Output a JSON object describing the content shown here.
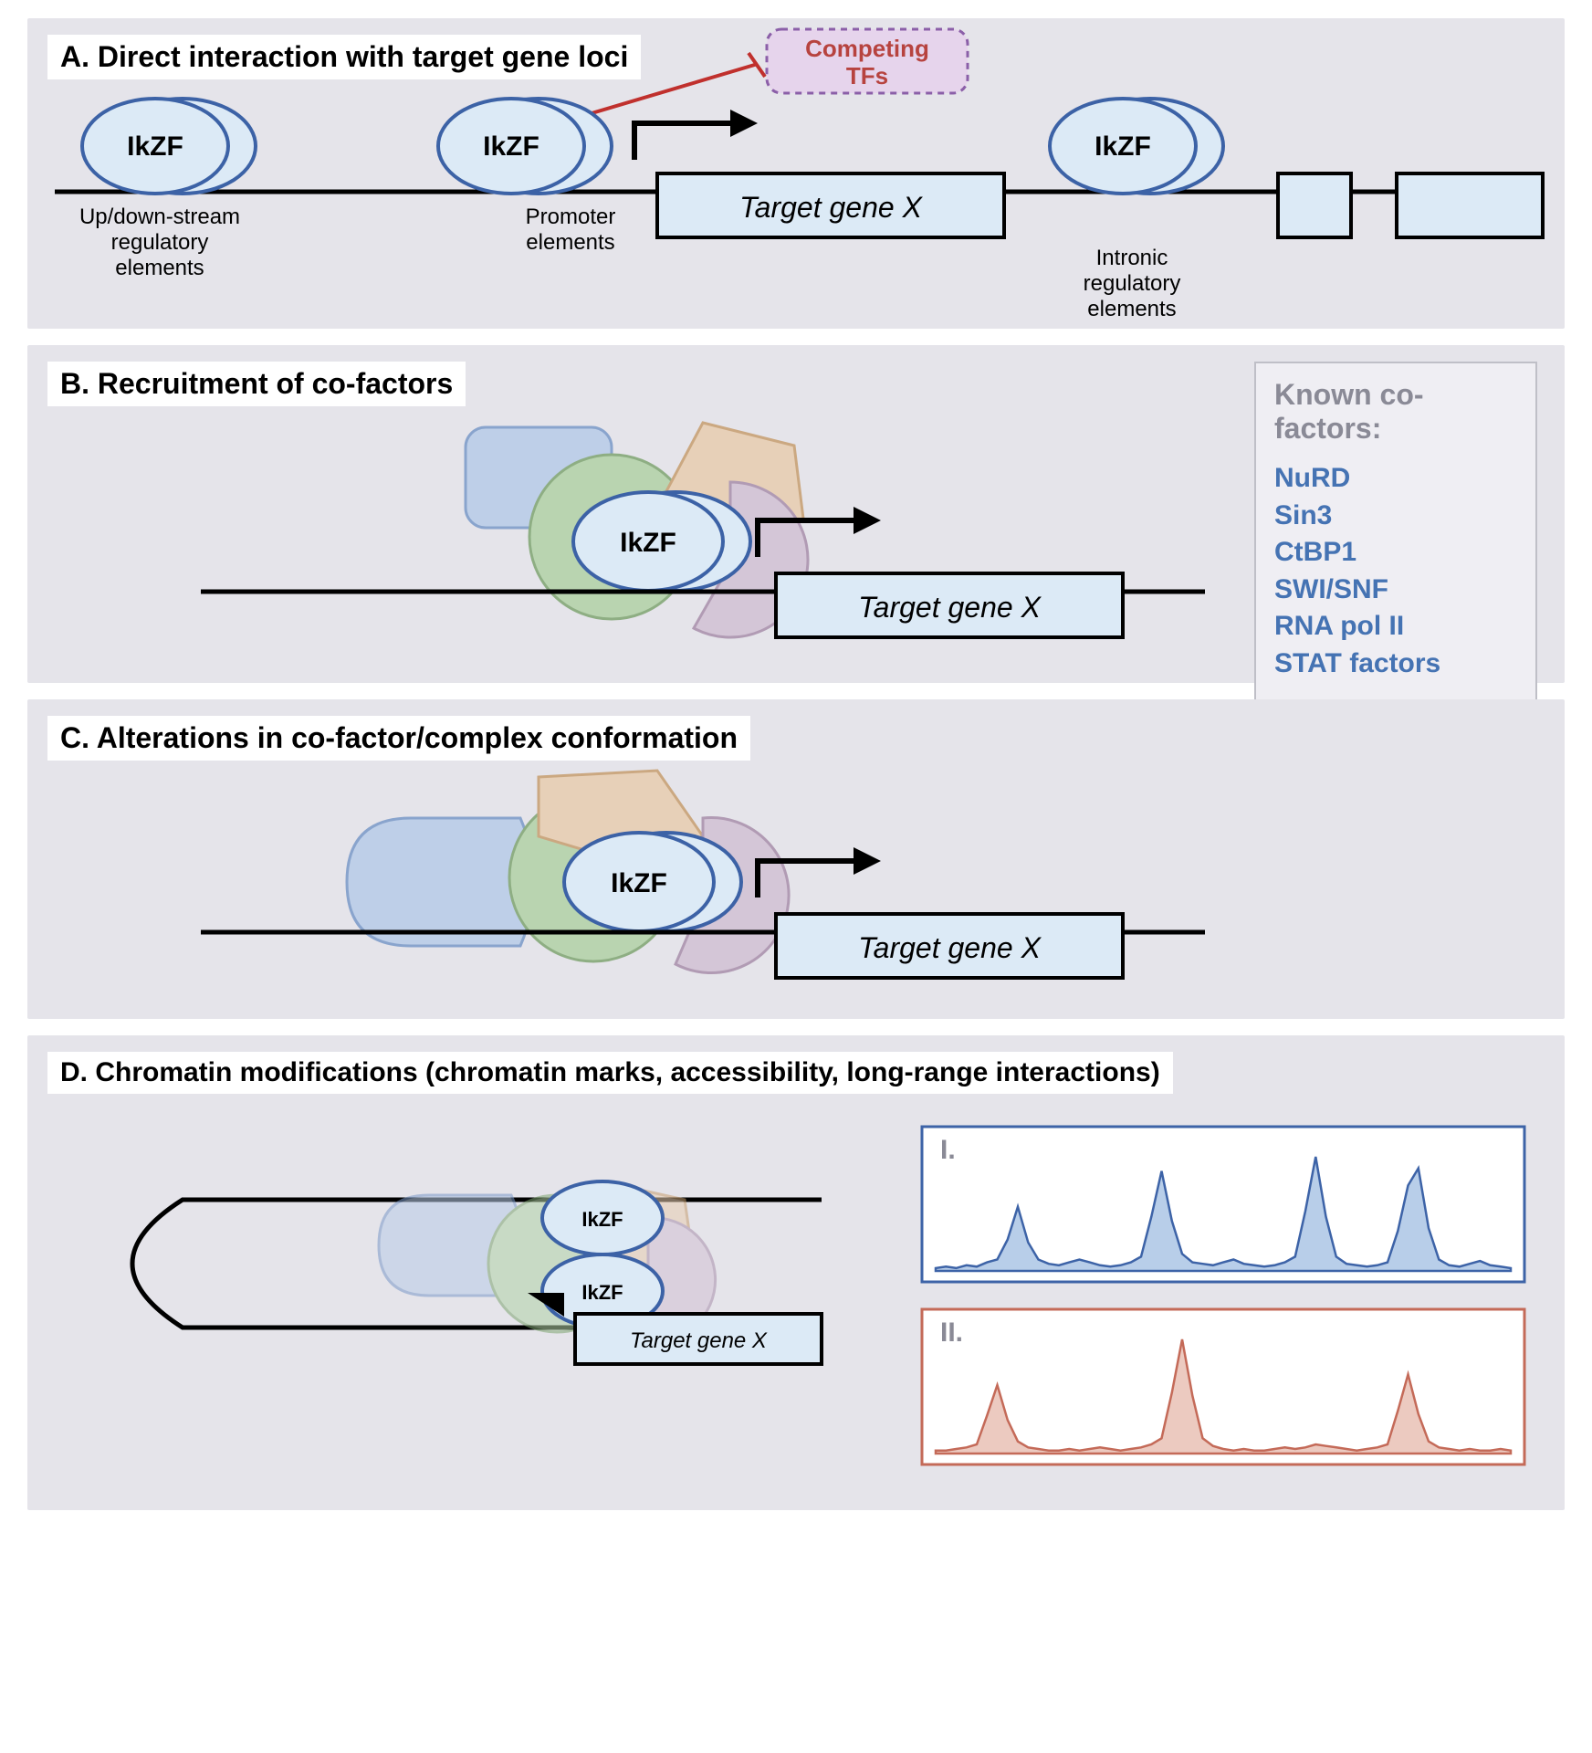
{
  "colors": {
    "panel_bg": "#e5e4ea",
    "gene_fill": "#dceaf6",
    "ikzf_fill": "#dceaf6",
    "ikzf_stroke": "#3c62a6",
    "dna_line": "#000000",
    "competing_fill": "#e6d4ec",
    "competing_stroke": "#8b5fa8",
    "competing_text": "#b7433f",
    "inhibit_line": "#c0302d",
    "cofactor_list": "#4573b3",
    "cofactor_header": "#8a8a96",
    "shape_blue": "#b8cce8",
    "shape_blue_stroke": "#7a99c8",
    "shape_green": "#b2d2a7",
    "shape_green_stroke": "#7fa572",
    "shape_orange": "#e8cdb0",
    "shape_orange_stroke": "#c79e6f",
    "shape_purple": "#d2c1d4",
    "shape_purple_stroke": "#a88fab",
    "track1_stroke": "#3d63a7",
    "track1_fill": "#b8cee9",
    "track2_stroke": "#c46a58",
    "track2_fill": "#eccac0",
    "track_title": "#8a8a96"
  },
  "typography": {
    "title_fontsize": 32,
    "title_weight": "bold",
    "label_fontsize": 26,
    "gene_fontsize": 32,
    "ikzf_fontsize": 28,
    "cofactor_fontsize": 30,
    "track_label_fontsize": 30
  },
  "panelA": {
    "title": "A. Direct interaction with target gene loci",
    "competing_tf": "Competing TFs",
    "ikzf_label": "IkZF",
    "labels": {
      "upstream": "Up/down-stream\nregulatory\nelements",
      "promoter": "Promoter\nelements",
      "intronic": "Intronic\nregulatory\nelements"
    },
    "target_gene": "Target gene X",
    "exon_boxes": 3
  },
  "panelB": {
    "title": "B. Recruitment of co-factors",
    "ikzf_label": "IkZF",
    "target_gene": "Target gene X",
    "cofactors_header": "Known co-factors:",
    "cofactors": [
      "NuRD",
      "Sin3",
      "CtBP1",
      "SWI/SNF",
      "RNA pol II",
      "STAT factors"
    ]
  },
  "panelC": {
    "title": "C. Alterations in co-factor/complex conformation",
    "ikzf_label": "IkZF",
    "target_gene": "Target gene X"
  },
  "panelD": {
    "title": "D. Chromatin modifications (chromatin marks, accessibility, long-range interactions)",
    "ikzf_label": "IkZF",
    "target_gene": "Target gene X",
    "tracks": [
      {
        "label": "I.",
        "stroke": "#3d63a7",
        "fill": "#b8cee9",
        "values": [
          2,
          3,
          2,
          4,
          3,
          6,
          8,
          22,
          45,
          20,
          8,
          5,
          4,
          6,
          8,
          6,
          4,
          3,
          4,
          6,
          10,
          38,
          70,
          35,
          12,
          6,
          5,
          4,
          6,
          8,
          5,
          4,
          3,
          4,
          6,
          10,
          42,
          80,
          38,
          10,
          5,
          4,
          3,
          4,
          6,
          28,
          60,
          72,
          30,
          8,
          4,
          3,
          5,
          7,
          4,
          3,
          2
        ]
      },
      {
        "label": "II.",
        "stroke": "#c46a58",
        "fill": "#eccac0",
        "values": [
          2,
          2,
          3,
          4,
          6,
          25,
          45,
          22,
          8,
          4,
          3,
          2,
          2,
          3,
          2,
          3,
          4,
          3,
          2,
          3,
          4,
          6,
          10,
          40,
          75,
          38,
          10,
          5,
          3,
          2,
          3,
          2,
          2,
          3,
          4,
          3,
          4,
          6,
          5,
          4,
          3,
          2,
          3,
          4,
          6,
          28,
          52,
          26,
          8,
          4,
          3,
          2,
          3,
          2,
          2,
          3,
          2
        ]
      }
    ]
  }
}
